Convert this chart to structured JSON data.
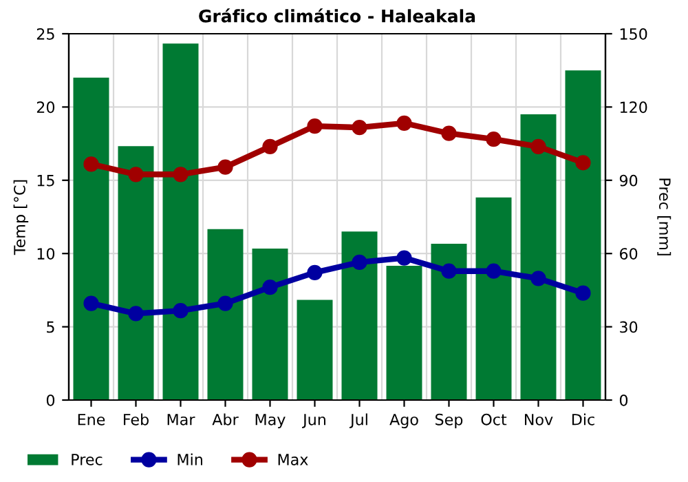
{
  "chart_data": {
    "type": "bar",
    "title": "Gráfico climático - Haleakala",
    "ylabel": "Temp [°C]",
    "y2label": "Prec [mm]",
    "categories": [
      "Ene",
      "Feb",
      "Mar",
      "Abr",
      "May",
      "Jun",
      "Jul",
      "Ago",
      "Sep",
      "Oct",
      "Nov",
      "Dic"
    ],
    "series": [
      {
        "name": "Prec",
        "axis": "y2",
        "color": "#007a33",
        "values": [
          132,
          104,
          146,
          70,
          62,
          41,
          69,
          55,
          64,
          83,
          117,
          135
        ]
      },
      {
        "name": "Min",
        "type": "line",
        "color": "#0000a0",
        "values": [
          6.6,
          5.9,
          6.1,
          6.6,
          7.7,
          8.7,
          9.4,
          9.7,
          8.8,
          8.8,
          8.3,
          7.3
        ]
      },
      {
        "name": "Max",
        "type": "line",
        "color": "#a00000",
        "values": [
          16.1,
          15.4,
          15.4,
          15.9,
          17.3,
          18.7,
          18.6,
          18.9,
          18.2,
          17.8,
          17.3,
          16.2
        ]
      }
    ],
    "ylim": [
      0,
      25
    ],
    "yticks": [
      0,
      5,
      10,
      15,
      20,
      25
    ],
    "y2lim": [
      0,
      150
    ],
    "y2ticks": [
      0,
      30,
      60,
      90,
      120,
      150
    ],
    "grid": true,
    "legend": "bottom",
    "marker": "circle"
  }
}
